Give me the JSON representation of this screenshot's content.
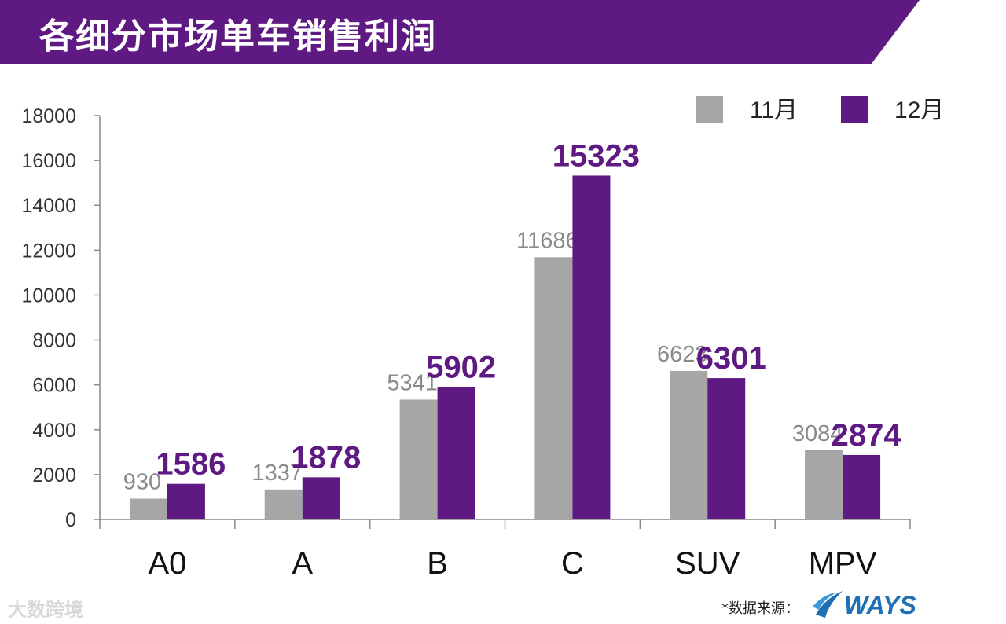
{
  "header": {
    "title": "各细分市场单车销售利润"
  },
  "colors": {
    "banner": "#5e1a82",
    "series_11": "#a6a6a6",
    "series_12": "#5e1a82",
    "axis": "#888888"
  },
  "chart_data": {
    "type": "bar",
    "title": "各细分市场单车销售利润",
    "xlabel": "",
    "ylabel": "",
    "ylim": [
      0,
      18000
    ],
    "yticks": [
      0,
      2000,
      4000,
      6000,
      8000,
      10000,
      12000,
      14000,
      16000,
      18000
    ],
    "grid": false,
    "legend_position": "top-right",
    "categories": [
      "A0",
      "A",
      "B",
      "C",
      "SUV",
      "MPV"
    ],
    "series": [
      {
        "name": "11月",
        "values": [
          930,
          1337,
          5341,
          11686,
          6623,
          3084
        ]
      },
      {
        "name": "12月",
        "values": [
          1586,
          1878,
          5902,
          15323,
          6301,
          2874
        ]
      }
    ]
  },
  "footer": {
    "watermark": "大数跨境",
    "source_label": "*数据来源：",
    "logo_text": "WAYS"
  }
}
